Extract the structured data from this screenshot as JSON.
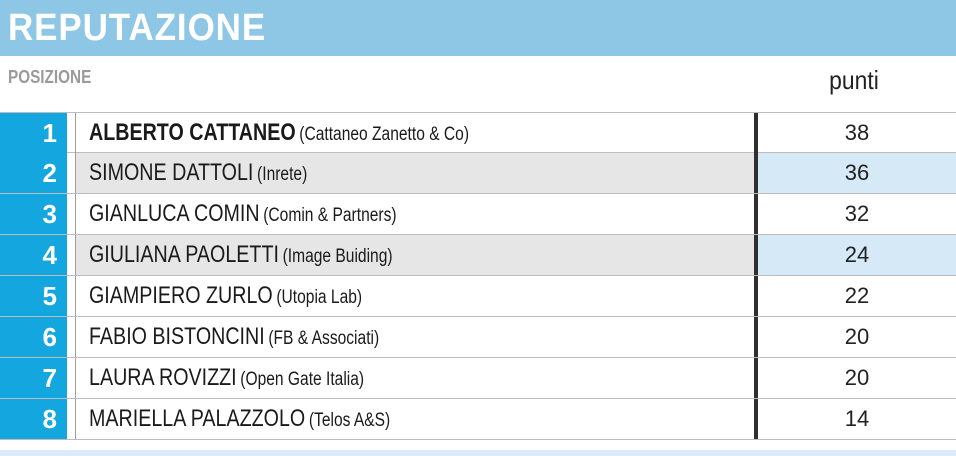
{
  "title": "REPUTAZIONE",
  "header": {
    "position_label": "POSIZIONE",
    "points_label": "punti"
  },
  "colors": {
    "title_bar": "#8ec6e6",
    "rank_cell": "#14a6df",
    "shaded_name": "#e6e6e6",
    "shaded_points": "#d6e9f7"
  },
  "rows": [
    {
      "rank": "1",
      "name": "ALBERTO CATTANEO",
      "company": "(Cattaneo Zanetto & Co)",
      "points": "38"
    },
    {
      "rank": "2",
      "name": "SIMONE DATTOLI",
      "company": "(Inrete)",
      "points": "36"
    },
    {
      "rank": "3",
      "name": "GIANLUCA COMIN",
      "company": "(Comin & Partners)",
      "points": "32"
    },
    {
      "rank": "4",
      "name": "GIULIANA PAOLETTI",
      "company": "(Image Buiding)",
      "points": "24"
    },
    {
      "rank": "5",
      "name": "GIAMPIERO ZURLO",
      "company": "(Utopia Lab)",
      "points": "22"
    },
    {
      "rank": "6",
      "name": "FABIO BISTONCINI",
      "company": "(FB & Associati)",
      "points": "20"
    },
    {
      "rank": "7",
      "name": "LAURA ROVIZZI",
      "company": "(Open Gate Italia)",
      "points": "20"
    },
    {
      "rank": "8",
      "name": "MARIELLA PALAZZOLO",
      "company": "(Telos A&S)",
      "points": "14"
    }
  ]
}
